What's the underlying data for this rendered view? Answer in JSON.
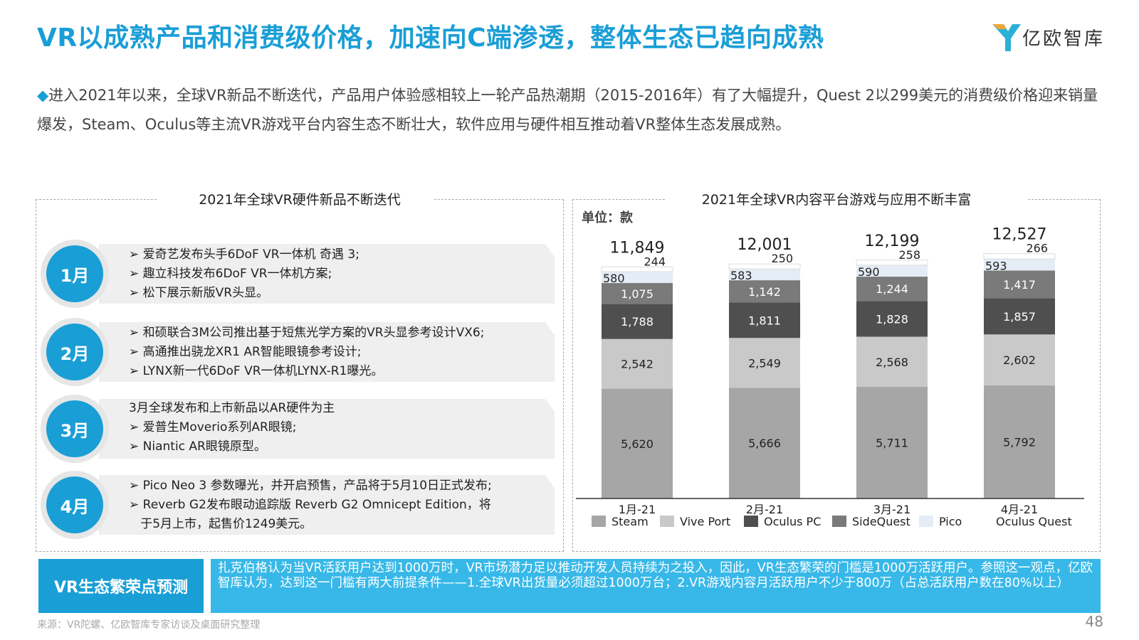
{
  "title": "VR以成熟产品和消费级价格，加速向C端渗透，整体生态已趋向成熟",
  "logo_text": "亿欧智库",
  "intro": {
    "bullet": "◆",
    "text": "进入2021年以来，全球VR新品不断迭代，产品用户体验感相较上一轮产品热潮期（2015-2016年）有了大幅提升，Quest 2以299美元的消费级价格迎来销量爆发，Steam、Oculus等主流VR游戏平台内容生态不断壮大，软件应用与硬件相互推动着VR整体生态发展成熟。"
  },
  "left_panel": {
    "title": "2021年全球VR硬件新品不断迭代",
    "months": [
      {
        "label": "1月",
        "items": [
          "➢ 爱奇艺发布头手6DoF VR一体机 奇遇 3;",
          "➢ 趣立科技发布6DoF VR一体机方案;",
          "➢ 松下展示新版VR头显。"
        ]
      },
      {
        "label": "2月",
        "items": [
          "➢ 和硕联合3M公司推出基于短焦光学方案的VR头显参考设计VX6;",
          "➢ 高通推出骁龙XR1 AR智能眼镜参考设计;",
          "➢ LYNX新一代6DoF VR一体机LYNX-R1曝光。"
        ]
      },
      {
        "label": "3月",
        "items": [
          "3月全球发布和上市新品以AR硬件为主",
          "➢ 爱普生Moverio系列AR眼镜;",
          "➢ Niantic AR眼镜原型。"
        ]
      },
      {
        "label": "4月",
        "items": [
          "➢ Pico Neo 3 参数曝光，并开启预售，产品将于5月10日正式发布;",
          "➢ Reverb G2发布眼动追踪版 Reverb G2 Omnicept Edition，将",
          "   于5月上市，起售价1249美元。"
        ]
      }
    ]
  },
  "right_panel": {
    "title": "2021年全球VR内容平台游戏与应用不断丰富",
    "unit": "单位：款"
  },
  "chart_data": {
    "type": "bar",
    "stacked": true,
    "categories": [
      "1月-21",
      "2月-21",
      "3月-21",
      "4月-21"
    ],
    "series": [
      {
        "name": "Steam",
        "color": "#a6a6a6",
        "values": [
          5620,
          5666,
          5711,
          5792
        ]
      },
      {
        "name": "Vive Port",
        "color": "#c9c9c9",
        "values": [
          2542,
          2549,
          2568,
          2602
        ]
      },
      {
        "name": "Oculus PC",
        "color": "#4f4f4f",
        "values": [
          1788,
          1811,
          1828,
          1857
        ]
      },
      {
        "name": "SideQuest",
        "color": "#7a7a7a",
        "values": [
          1075,
          1142,
          1244,
          1417
        ]
      },
      {
        "name": "Pico",
        "color": "#e4ecf6",
        "values": [
          580,
          583,
          590,
          593
        ]
      },
      {
        "name": "Oculus Quest",
        "color": "#ffffff",
        "values": [
          244,
          250,
          258,
          266
        ]
      }
    ],
    "totals": [
      11849,
      12001,
      12199,
      12527
    ],
    "ylim": [
      0,
      13500
    ],
    "legend": "bottom"
  },
  "bottom": {
    "label": "VR生态繁荣点预测",
    "text": "扎克伯格认为当VR活跃用户达到1000万时，VR市场潜力足以推动开发人员持续为之投入，因此，VR生态繁荣的门槛是1000万活跃用户。参照这一观点，亿欧智库认为，达到这一门槛有两大前提条件——1.全球VR出货量必须超过1000万台；2.VR游戏内容月活跃用户不少于800万（占总活跃用户数在80%以上）"
  },
  "source": "来源：VR陀螺、亿欧智库专家访谈及桌面研究整理",
  "page_number": "48"
}
